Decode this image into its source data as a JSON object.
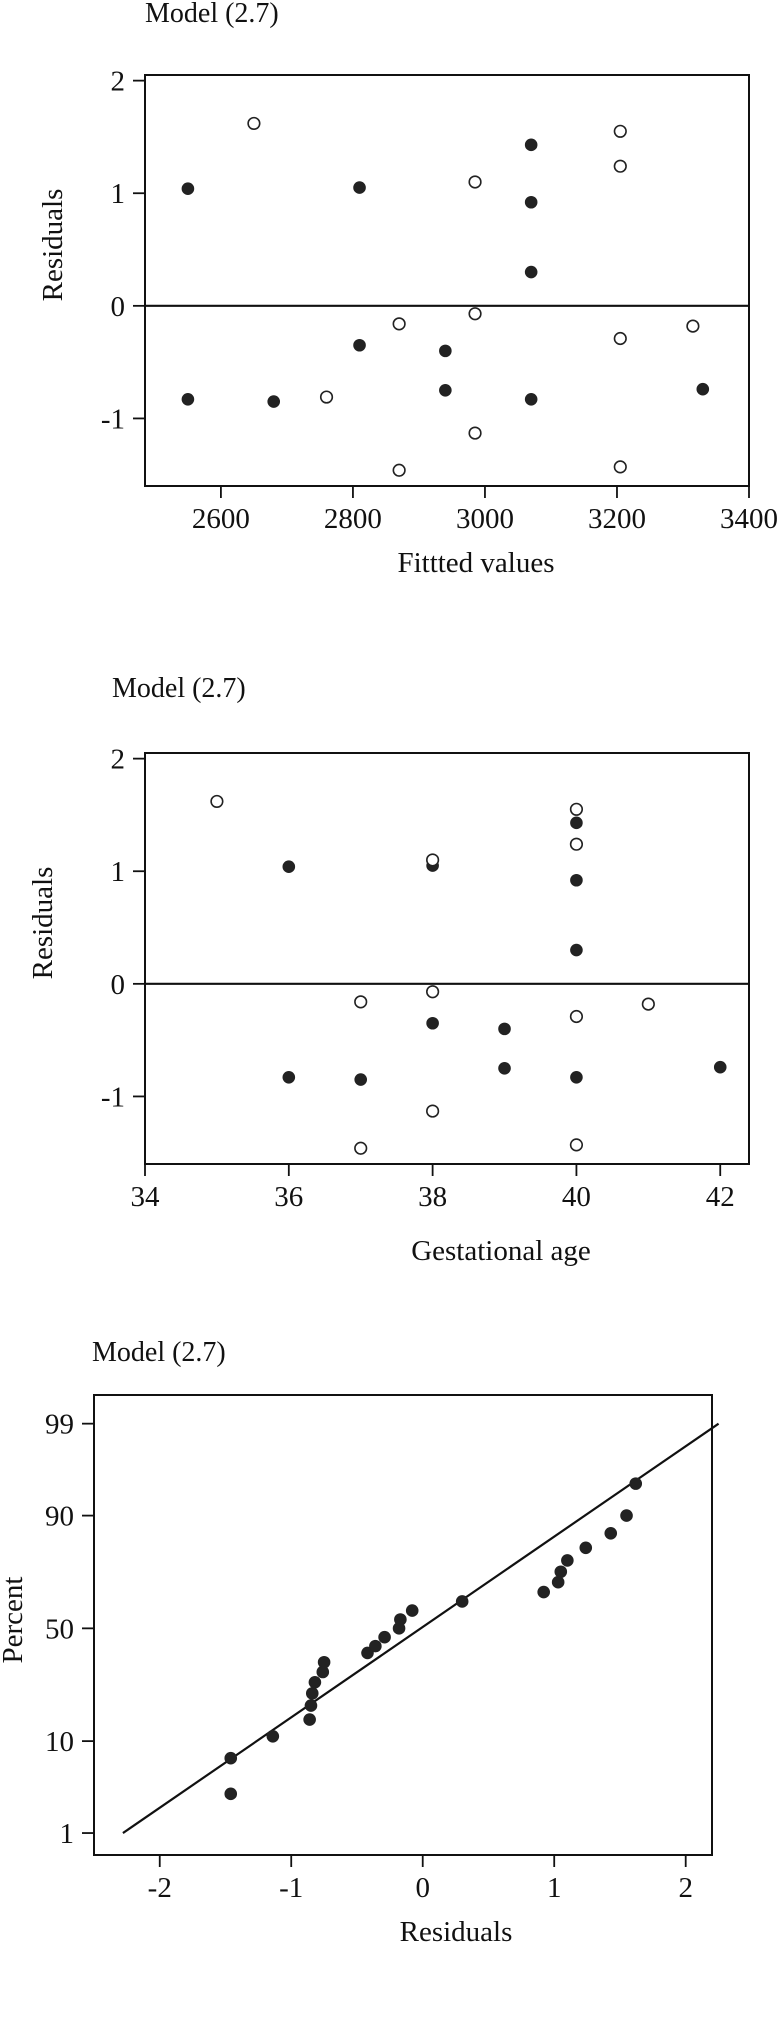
{
  "chart_data": [
    {
      "type": "scatter",
      "title": "Model (2.7)",
      "xlabel": "Fittted values",
      "ylabel": "Residuals",
      "xlim": [
        2485,
        3400
      ],
      "ylim": [
        -1.6,
        2.05
      ],
      "xticks": [
        2600,
        2800,
        3000,
        3200,
        3400
      ],
      "xtick_labels": [
        "2600",
        "2800",
        "3000",
        "3200",
        "3400"
      ],
      "yticks": [
        2,
        1,
        0,
        -1
      ],
      "ytick_labels": [
        "2",
        "1",
        "0",
        "-1"
      ],
      "reference_line_y": 0,
      "grid": false,
      "series": [
        {
          "marker": "filled-circle",
          "points": [
            {
              "x": 2550,
              "y": 1.04
            },
            {
              "x": 2550,
              "y": -0.83
            },
            {
              "x": 2680,
              "y": -0.85
            },
            {
              "x": 2810,
              "y": 1.05
            },
            {
              "x": 2810,
              "y": -0.35
            },
            {
              "x": 2940,
              "y": -0.4
            },
            {
              "x": 2940,
              "y": -0.75
            },
            {
              "x": 3070,
              "y": 1.43
            },
            {
              "x": 3070,
              "y": 0.92
            },
            {
              "x": 3070,
              "y": 0.3
            },
            {
              "x": 3070,
              "y": -0.83
            },
            {
              "x": 3330,
              "y": -0.74
            }
          ]
        },
        {
          "marker": "open-circle",
          "points": [
            {
              "x": 2650,
              "y": 1.62
            },
            {
              "x": 2760,
              "y": -0.81
            },
            {
              "x": 2870,
              "y": -0.16
            },
            {
              "x": 2870,
              "y": -1.46
            },
            {
              "x": 2985,
              "y": 1.1
            },
            {
              "x": 2985,
              "y": -0.07
            },
            {
              "x": 2985,
              "y": -1.13
            },
            {
              "x": 3205,
              "y": 1.55
            },
            {
              "x": 3205,
              "y": 1.24
            },
            {
              "x": 3205,
              "y": -0.29
            },
            {
              "x": 3205,
              "y": -1.43
            },
            {
              "x": 3315,
              "y": -0.18
            }
          ]
        }
      ]
    },
    {
      "type": "scatter",
      "title": "Model (2.7)",
      "xlabel": "Gestational age",
      "ylabel": "Residuals",
      "xlim": [
        34,
        42.4
      ],
      "ylim": [
        -1.6,
        2.05
      ],
      "xticks": [
        34,
        36,
        38,
        40,
        42
      ],
      "xtick_labels": [
        "34",
        "36",
        "38",
        "40",
        "42"
      ],
      "yticks": [
        2,
        1,
        0,
        -1
      ],
      "ytick_labels": [
        "2",
        "1",
        "0",
        "-1"
      ],
      "reference_line_y": 0,
      "grid": false,
      "series": [
        {
          "marker": "filled-circle",
          "points": [
            {
              "x": 36,
              "y": 1.04
            },
            {
              "x": 36,
              "y": -0.83
            },
            {
              "x": 37,
              "y": -0.85
            },
            {
              "x": 38,
              "y": 1.05
            },
            {
              "x": 38,
              "y": -0.35
            },
            {
              "x": 39,
              "y": -0.4
            },
            {
              "x": 39,
              "y": -0.75
            },
            {
              "x": 40,
              "y": 1.43
            },
            {
              "x": 40,
              "y": 0.92
            },
            {
              "x": 40,
              "y": 0.3
            },
            {
              "x": 40,
              "y": -0.83
            },
            {
              "x": 42,
              "y": -0.74
            }
          ]
        },
        {
          "marker": "open-circle",
          "points": [
            {
              "x": 35,
              "y": 1.62
            },
            {
              "x": 37,
              "y": -0.16
            },
            {
              "x": 37,
              "y": -1.46
            },
            {
              "x": 38,
              "y": 1.1
            },
            {
              "x": 38,
              "y": -0.07
            },
            {
              "x": 38,
              "y": -1.13
            },
            {
              "x": 40,
              "y": 1.55
            },
            {
              "x": 40,
              "y": 1.24
            },
            {
              "x": 40,
              "y": -0.29
            },
            {
              "x": 40,
              "y": -1.43
            },
            {
              "x": 41,
              "y": -0.18
            }
          ]
        }
      ]
    },
    {
      "type": "scatter",
      "title": "Model (2.7)",
      "xlabel": "Residuals",
      "ylabel": "Percent",
      "xlim": [
        -2.5,
        2.2
      ],
      "ylim_percent": [
        0.5,
        99.6
      ],
      "y_scale": "normal-probability",
      "xticks": [
        -2,
        -1,
        0,
        1,
        2
      ],
      "xtick_labels": [
        "-2",
        "-1",
        "0",
        "1",
        "2"
      ],
      "yticks_percent": [
        99,
        90,
        50,
        10,
        1
      ],
      "ytick_labels": [
        "99",
        "90",
        "50",
        "10",
        "1"
      ],
      "grid": false,
      "reference_line": [
        {
          "x": -2.28,
          "percent": 1.0
        },
        {
          "x": 2.25,
          "percent": 99.0
        }
      ],
      "series": [
        {
          "marker": "filled-circle",
          "points": [
            {
              "x": -1.46,
              "percent": 3.0
            },
            {
              "x": -1.46,
              "percent": 7.0
            },
            {
              "x": -1.14,
              "percent": 11.0
            },
            {
              "x": -0.86,
              "percent": 15.0
            },
            {
              "x": -0.85,
              "percent": 19.0
            },
            {
              "x": -0.84,
              "percent": 23.0
            },
            {
              "x": -0.82,
              "percent": 27.0
            },
            {
              "x": -0.76,
              "percent": 31.0
            },
            {
              "x": -0.75,
              "percent": 35.0
            },
            {
              "x": -0.42,
              "percent": 39.0
            },
            {
              "x": -0.36,
              "percent": 42.0
            },
            {
              "x": -0.29,
              "percent": 46.0
            },
            {
              "x": -0.18,
              "percent": 50.0
            },
            {
              "x": -0.17,
              "percent": 54.0
            },
            {
              "x": -0.08,
              "percent": 58.0
            },
            {
              "x": 0.3,
              "percent": 62.0
            },
            {
              "x": 0.92,
              "percent": 66.0
            },
            {
              "x": 1.03,
              "percent": 70.0
            },
            {
              "x": 1.05,
              "percent": 74.0
            },
            {
              "x": 1.1,
              "percent": 78.0
            },
            {
              "x": 1.24,
              "percent": 82.0
            },
            {
              "x": 1.43,
              "percent": 86.0
            },
            {
              "x": 1.55,
              "percent": 90.0
            },
            {
              "x": 1.62,
              "percent": 95.0
            }
          ]
        }
      ]
    }
  ]
}
